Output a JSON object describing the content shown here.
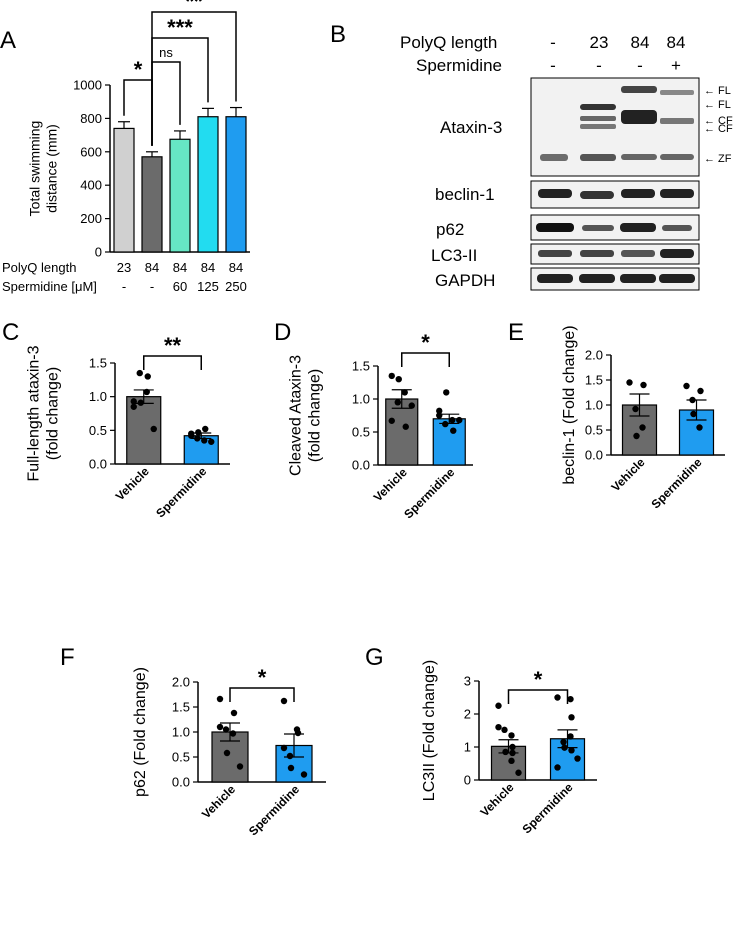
{
  "panel_labels": {
    "A": "A",
    "B": "B",
    "C": "C",
    "D": "D",
    "E": "E",
    "F": "F",
    "G": "G"
  },
  "colors": {
    "light_gray": "#d0d0d0",
    "dark_gray": "#6b6b6b",
    "mint": "#66e6c4",
    "cyan": "#22dcf0",
    "blue": "#1f9cf0"
  },
  "chart_data": [
    {
      "id": "A",
      "type": "bar",
      "categories": [
        "23|-",
        "84|-",
        "84|60",
        "84|125",
        "84|250"
      ],
      "rows": [
        {
          "label": "PolyQ length",
          "values": [
            "23",
            "84",
            "84",
            "84",
            "84"
          ]
        },
        {
          "label": "Spermidine [μM]",
          "values": [
            "-",
            "-",
            "60",
            "125",
            "250"
          ]
        }
      ],
      "values": [
        740,
        570,
        675,
        810,
        810
      ],
      "errors": [
        40,
        30,
        50,
        50,
        55
      ],
      "bar_colors": [
        "#d0d0d0",
        "#6b6b6b",
        "#66e6c4",
        "#22dcf0",
        "#1f9cf0"
      ],
      "ylabel": "Total swimming distance (mm)",
      "ylabel_lines": [
        "Total swimming",
        "distance (mm)"
      ],
      "ylim": [
        0,
        1000
      ],
      "yticks": [
        0,
        200,
        400,
        600,
        800,
        1000
      ],
      "significance": [
        {
          "from": 0,
          "to": 1,
          "label": "*"
        },
        {
          "from": 1,
          "to": 2,
          "label": "ns"
        },
        {
          "from": 1,
          "to": 3,
          "label": "***"
        },
        {
          "from": 1,
          "to": 4,
          "label": "**"
        }
      ]
    },
    {
      "id": "C",
      "type": "bar",
      "categories": [
        "Vehicle",
        "Spermidine"
      ],
      "values": [
        1.0,
        0.42
      ],
      "errors": [
        0.1,
        0.04
      ],
      "points": [
        [
          0.93,
          1.07,
          1.3,
          1.35,
          0.91,
          0.52,
          0.85
        ],
        [
          0.45,
          0.35,
          0.52,
          0.38,
          0.47,
          0.33,
          0.42
        ]
      ],
      "ylabel_lines": [
        "Full-length ataxin-3",
        "(fold change)"
      ],
      "ylim": [
        0,
        1.5
      ],
      "yticks": [
        "0.0",
        "0.5",
        "1.0",
        "1.5"
      ],
      "significance": [
        {
          "from": 0,
          "to": 1,
          "label": "**"
        }
      ]
    },
    {
      "id": "D",
      "type": "bar",
      "categories": [
        "Vehicle",
        "Spermidine"
      ],
      "values": [
        1.0,
        0.7
      ],
      "errors": [
        0.14,
        0.07
      ],
      "points": [
        [
          1.35,
          1.1,
          0.58,
          0.95,
          1.3,
          0.9,
          0.67
        ],
        [
          0.75,
          0.68,
          0.52,
          0.62,
          1.1,
          0.68,
          0.82
        ]
      ],
      "ylabel_lines": [
        "Cleaved Ataxin-3",
        "(fold change)"
      ],
      "ylim": [
        0,
        1.5
      ],
      "yticks": [
        "0.0",
        "0.5",
        "1.0",
        "1.5"
      ],
      "significance": [
        {
          "from": 0,
          "to": 1,
          "label": "*"
        }
      ]
    },
    {
      "id": "E",
      "type": "bar",
      "categories": [
        "Vehicle",
        "Spermidine"
      ],
      "values": [
        1.0,
        0.9
      ],
      "errors": [
        0.22,
        0.2
      ],
      "points": [
        [
          1.45,
          0.55,
          1.4,
          0.92,
          0.38
        ],
        [
          1.38,
          0.55,
          1.28,
          1.1,
          0.82
        ]
      ],
      "ylabel_lines": [
        "beclin-1 (Fold change)"
      ],
      "ylim": [
        0,
        2.0
      ],
      "yticks": [
        "0.0",
        "0.5",
        "1.0",
        "1.5",
        "2.0"
      ],
      "significance": []
    },
    {
      "id": "F",
      "type": "bar",
      "categories": [
        "Vehicle",
        "Spermidine"
      ],
      "values": [
        1.0,
        0.73
      ],
      "errors": [
        0.18,
        0.23
      ],
      "points": [
        [
          1.66,
          0.97,
          1.38,
          1.05,
          0.58,
          0.31,
          1.1
        ],
        [
          1.62,
          1.05,
          0.98,
          0.52,
          0.28,
          0.15,
          0.68
        ]
      ],
      "ylabel_lines": [
        "p62 (Fold change)"
      ],
      "ylim": [
        0,
        2.0
      ],
      "yticks": [
        "0.0",
        "0.5",
        "1.0",
        "1.5",
        "2.0"
      ],
      "significance": [
        {
          "from": 0,
          "to": 1,
          "label": "*"
        }
      ]
    },
    {
      "id": "G",
      "type": "bar",
      "categories": [
        "Vehicle",
        "Spermidine"
      ],
      "values": [
        1.02,
        1.25
      ],
      "errors": [
        0.2,
        0.27
      ],
      "points": [
        [
          2.25,
          1.35,
          0.82,
          1.52,
          0.85,
          0.22,
          1.6,
          0.58,
          1.0
        ],
        [
          2.5,
          2.45,
          1.9,
          1.15,
          0.98,
          0.65,
          0.38,
          1.32,
          0.9
        ]
      ],
      "ylabel_lines": [
        "LC3II (Fold change)"
      ],
      "ylim": [
        0,
        3
      ],
      "yticks": [
        "0",
        "1",
        "2",
        "3"
      ],
      "significance": [
        {
          "from": 0,
          "to": 1,
          "label": "*"
        }
      ]
    }
  ],
  "blot": {
    "header_rows": [
      {
        "label": "PolyQ length",
        "values": [
          "-",
          "23",
          "84",
          "84"
        ]
      },
      {
        "label": "Spermidine",
        "values": [
          "-",
          "-",
          "-",
          "+"
        ]
      }
    ],
    "panels": [
      {
        "label": "Ataxin-3",
        "markers": [
          "← FL",
          "← FL",
          "← CF",
          "← CF",
          "← ZF"
        ]
      },
      {
        "label": "beclin-1",
        "markers": []
      },
      {
        "label": "p62",
        "markers": []
      },
      {
        "label": "LC3-II",
        "markers": []
      },
      {
        "label": "GAPDH",
        "markers": []
      }
    ]
  }
}
